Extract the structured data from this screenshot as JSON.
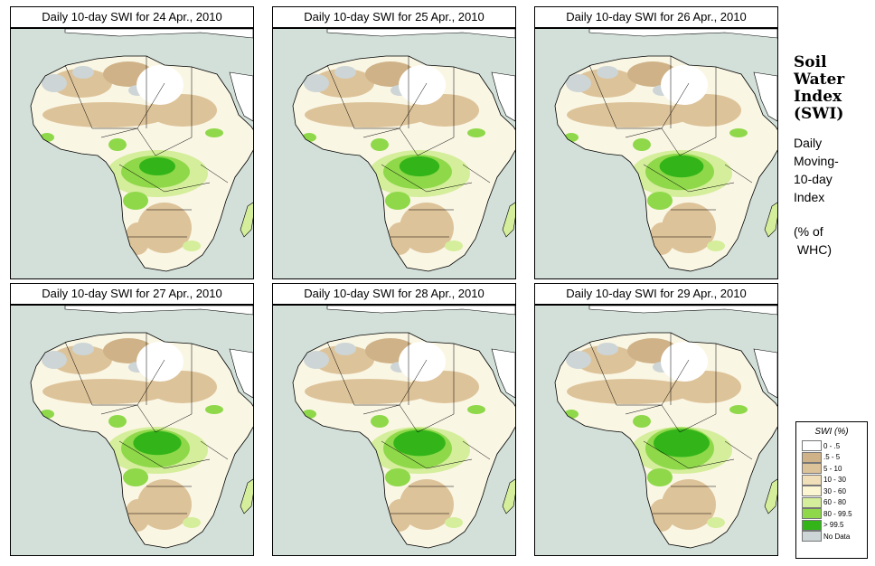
{
  "panels": [
    {
      "title": "Daily 10-day SWI for  24 Apr., 2010"
    },
    {
      "title": "Daily 10-day SWI for  25 Apr., 2010"
    },
    {
      "title": "Daily 10-day SWI for  26 Apr., 2010"
    },
    {
      "title": "Daily 10-day SWI for  27 Apr., 2010"
    },
    {
      "title": "Daily 10-day SWI for  28 Apr., 2010"
    },
    {
      "title": "Daily 10-day SWI for  29 Apr., 2010"
    }
  ],
  "side": {
    "title_line1": "Soil",
    "title_line2": "Water",
    "title_line3": "Index",
    "title_line4": "(SWI)",
    "desc_line1": "Daily",
    "desc_line2": "Moving-",
    "desc_line3": "10-day",
    "desc_line4": "Index",
    "unit_line1": "(% of",
    "unit_line2": " WHC)"
  },
  "legend": {
    "title": "SWI (%)",
    "items": [
      {
        "label": "0 - .5",
        "color": "#ffffff"
      },
      {
        "label": ".5 - 5",
        "color": "#cfb287"
      },
      {
        "label": "5 - 10",
        "color": "#ddc399"
      },
      {
        "label": "10 - 30",
        "color": "#f1dfb9"
      },
      {
        "label": "30 - 60",
        "color": "#fbf5d2"
      },
      {
        "label": "60 - 80",
        "color": "#d4ee9b"
      },
      {
        "label": "80 - 99.5",
        "color": "#8fd84a"
      },
      {
        "label": "> 99.5",
        "color": "#33b51a"
      },
      {
        "label": "No Data",
        "color": "#cdd5d6"
      }
    ]
  },
  "colors": {
    "sea": "#d3e0d9",
    "land": "#faf6e4",
    "desert_white": "#ffffff",
    "sand": "#ddc399",
    "sand_dark": "#cfb287",
    "light_green": "#d4ee9b",
    "mid_green": "#8fd84a",
    "dark_green": "#33b51a",
    "no_data": "#cdd5d6",
    "border": "#000000"
  }
}
